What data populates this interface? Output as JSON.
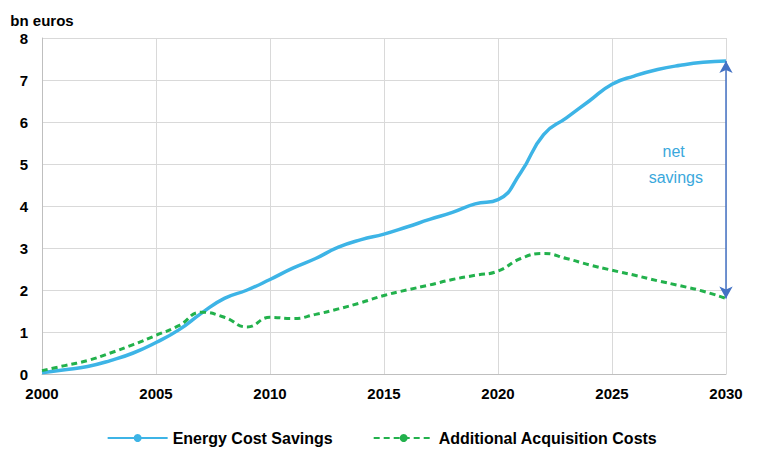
{
  "chart_data": {
    "type": "line",
    "y_label": "bn euros",
    "x": [
      2000,
      2001,
      2002,
      2003,
      2004,
      2005,
      2006,
      2007,
      2008,
      2009,
      2010,
      2011,
      2012,
      2013,
      2014,
      2015,
      2016,
      2017,
      2018,
      2019,
      2020,
      2021,
      2022,
      2023,
      2024,
      2025,
      2026,
      2027,
      2028,
      2029,
      2030
    ],
    "series": [
      {
        "name": "Energy Cost Savings",
        "color": "#3db4e6",
        "line_style": "solid",
        "values": [
          0.03,
          0.1,
          0.18,
          0.32,
          0.5,
          0.75,
          1.05,
          1.45,
          1.8,
          2.0,
          2.25,
          2.52,
          2.75,
          3.02,
          3.2,
          3.33,
          3.5,
          3.68,
          3.85,
          4.05,
          4.15,
          4.8,
          5.7,
          6.1,
          6.5,
          6.9,
          7.1,
          7.25,
          7.35,
          7.42,
          7.45
        ]
      },
      {
        "name": "Additional Acquisition Costs",
        "color": "#22b14c",
        "line_style": "dashed",
        "values": [
          0.08,
          0.2,
          0.32,
          0.5,
          0.7,
          0.92,
          1.15,
          1.47,
          1.35,
          1.12,
          1.35,
          1.32,
          1.42,
          1.55,
          1.7,
          1.87,
          2.0,
          2.12,
          2.25,
          2.35,
          2.45,
          2.75,
          2.87,
          2.75,
          2.6,
          2.47,
          2.35,
          2.22,
          2.1,
          1.97,
          1.8
        ]
      }
    ],
    "annotations": [
      {
        "text": "net savings",
        "x": 2027.8,
        "y": 5.0,
        "color": "#3aa8dc"
      }
    ],
    "xlim": [
      2000,
      2030
    ],
    "xticks": [
      2000,
      2005,
      2010,
      2015,
      2020,
      2025,
      2030
    ],
    "ylim": [
      0,
      8
    ],
    "yticks": [
      0,
      1,
      2,
      3,
      4,
      5,
      6,
      7,
      8
    ],
    "grid": true,
    "legend": "bottom"
  }
}
